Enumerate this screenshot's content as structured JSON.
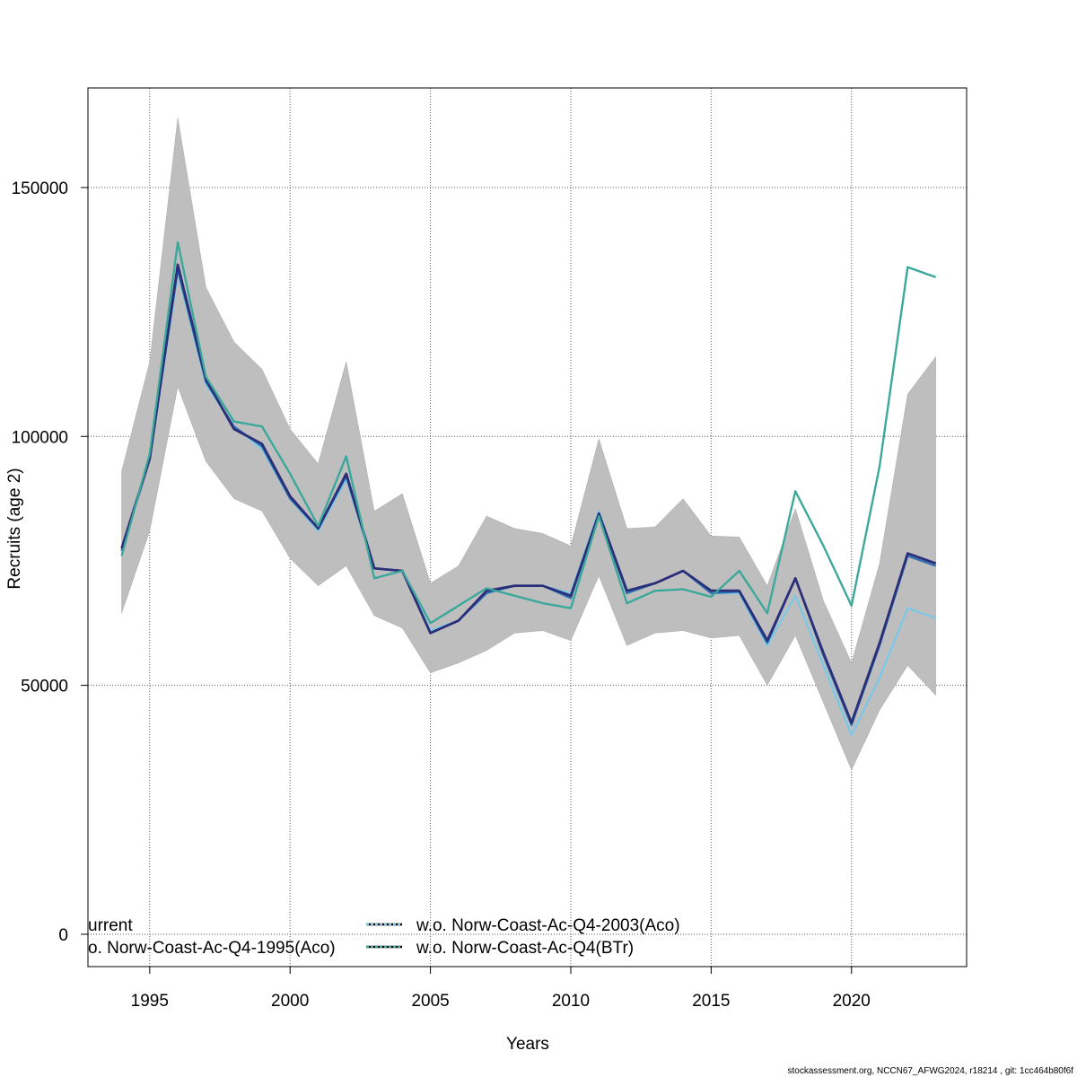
{
  "chart_data": {
    "type": "line",
    "title": "",
    "xlabel": "Years",
    "ylabel": "Recruits (age 2)",
    "xlim": [
      1992.8,
      2024.1
    ],
    "ylim": [
      -6500,
      170000
    ],
    "x_ticks": [
      1995,
      2000,
      2005,
      2010,
      2015,
      2020
    ],
    "y_ticks": [
      0,
      50000,
      100000,
      150000
    ],
    "grid": true,
    "legend_position": "bottom",
    "x": [
      1994,
      1995,
      1996,
      1997,
      1998,
      1999,
      2000,
      2001,
      2002,
      2003,
      2004,
      2005,
      2006,
      2007,
      2008,
      2009,
      2010,
      2011,
      2012,
      2013,
      2014,
      2015,
      2016,
      2017,
      2018,
      2019,
      2020,
      2021,
      2022,
      2023
    ],
    "band": {
      "upper": [
        93000,
        115000,
        164000,
        130000,
        119000,
        113500,
        101500,
        94500,
        115000,
        85000,
        88500,
        70500,
        74000,
        84000,
        81500,
        80500,
        78000,
        99500,
        81500,
        81800,
        87500,
        80000,
        79800,
        70000,
        85500,
        67000,
        54500,
        74500,
        108500,
        116000
      ],
      "lower": [
        64500,
        81000,
        110000,
        95000,
        87500,
        85000,
        75500,
        70000,
        74000,
        64000,
        61500,
        52500,
        54500,
        57000,
        60500,
        61000,
        59000,
        72000,
        58000,
        60500,
        61000,
        59500,
        60000,
        50000,
        60000,
        46500,
        33000,
        45000,
        54000,
        48000
      ],
      "color": "#bebebe"
    },
    "series": [
      {
        "name": "urrent",
        "color": "#2b2e78",
        "values": [
          77500,
          95500,
          134500,
          111500,
          101500,
          98500,
          88000,
          81500,
          92500,
          73500,
          73000,
          60500,
          63000,
          69000,
          70000,
          70000,
          68000,
          84500,
          69000,
          70500,
          73000,
          69000,
          69000,
          59000,
          71500,
          56500,
          42500,
          58500,
          76500,
          74500
        ]
      },
      {
        "name": "o. Norw-Coast-Ac-Q4-1995(Aco)",
        "color": "#2d6fb0",
        "values": [
          77000,
          95500,
          133500,
          111000,
          102000,
          98000,
          87500,
          81500,
          92000,
          73500,
          73000,
          60500,
          63000,
          68500,
          70000,
          70000,
          67500,
          84500,
          68500,
          70500,
          73000,
          68500,
          68800,
          58500,
          71500,
          56000,
          42000,
          58000,
          76000,
          74000
        ]
      },
      {
        "name": "w.o. Norw-Coast-Ac-Q4-2003(Aco)",
        "color": "#7ac8e8",
        "values": [
          77000,
          95500,
          133000,
          110500,
          102000,
          97500,
          87500,
          81000,
          91500,
          73500,
          73000,
          61000,
          63000,
          68500,
          70000,
          70000,
          68500,
          85000,
          68500,
          70500,
          73000,
          68500,
          68500,
          58000,
          68000,
          54000,
          40000,
          51500,
          65500,
          63500
        ]
      },
      {
        "name": "w.o. Norw-Coast-Ac-Q4(BTr)",
        "color": "#3aa89a",
        "values": [
          76000,
          96500,
          139000,
          112000,
          103000,
          102000,
          92500,
          82000,
          96000,
          71500,
          73000,
          62500,
          66000,
          69500,
          68000,
          66500,
          65500,
          84000,
          66500,
          69000,
          69300,
          67800,
          73000,
          64500,
          89000,
          78000,
          66000,
          94000,
          134000,
          132000
        ]
      }
    ],
    "legend": [
      {
        "label": "urrent",
        "color": "#2b2e78",
        "column": 1
      },
      {
        "label": "o. Norw-Coast-Ac-Q4-1995(Aco)",
        "color": "#2d6fb0",
        "column": 1
      },
      {
        "label": "w.o. Norw-Coast-Ac-Q4-2003(Aco)",
        "color": "#7ac8e8",
        "column": 2
      },
      {
        "label": "w.o. Norw-Coast-Ac-Q4(BTr)",
        "color": "#3aa89a",
        "column": 2
      }
    ],
    "footer": "stockassessment.org, NCCN67_AFWG2024, r18214 , git: 1cc464b80f6f"
  }
}
